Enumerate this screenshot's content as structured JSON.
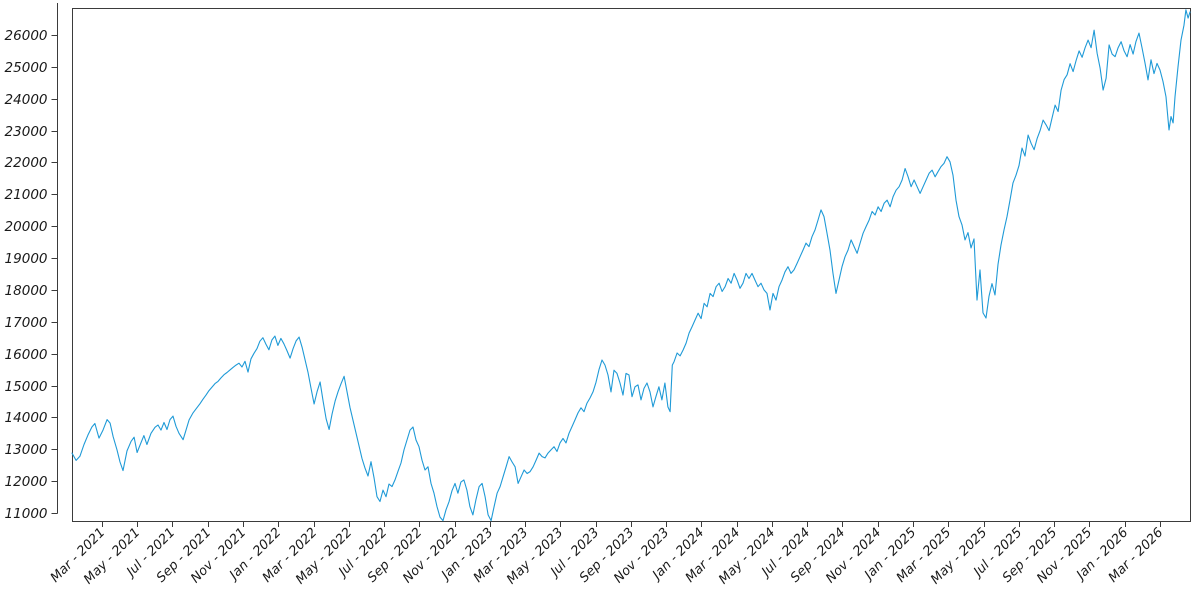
{
  "figure": {
    "background": "#ffffff",
    "axis_color": "#3b3b3b",
    "tick_label_color": "#1a1a1a"
  },
  "chart_data": {
    "type": "line",
    "title": "",
    "xlabel": "",
    "ylabel": "",
    "grid": false,
    "legend": false,
    "line_color": "#1f9ad7",
    "x_axis": {
      "start_date": "2021-01-10",
      "unit": "months-since-start",
      "range_months": [
        0,
        63.41
      ],
      "tick_first_month_offset": 1.7,
      "tick_interval_months": 2,
      "tick_labels": [
        "Mar - 2021",
        "May - 2021",
        "Jul - 2021",
        "Sep - 2021",
        "Nov - 2021",
        "Jan - 2022",
        "Mar - 2022",
        "May - 2022",
        "Jul - 2022",
        "Sep - 2022",
        "Nov - 2022",
        "Jan - 2023",
        "Mar - 2023",
        "May - 2023",
        "Jul - 2023",
        "Sep - 2023",
        "Nov - 2023",
        "Jan - 2024",
        "Mar - 2024",
        "May - 2024",
        "Jul - 2024",
        "Sep - 2024",
        "Nov - 2024",
        "Jan - 2025",
        "Mar - 2025",
        "May - 2025",
        "Jul - 2025",
        "Sep - 2025",
        "Nov - 2025",
        "Jan - 2026",
        "Mar - 2026"
      ]
    },
    "y_axis": {
      "range": [
        10749,
        26847
      ],
      "ticks": [
        11000,
        12000,
        13000,
        14000,
        15000,
        16000,
        17000,
        18000,
        19000,
        20000,
        21000,
        22000,
        23000,
        24000,
        25000,
        26000
      ]
    },
    "points": [
      [
        0,
        12880
      ],
      [
        0.23,
        12650
      ],
      [
        0.45,
        12780
      ],
      [
        0.68,
        13150
      ],
      [
        0.91,
        13450
      ],
      [
        1.13,
        13700
      ],
      [
        1.3,
        13810
      ],
      [
        1.53,
        13350
      ],
      [
        1.76,
        13600
      ],
      [
        1.99,
        13930
      ],
      [
        2.16,
        13820
      ],
      [
        2.33,
        13400
      ],
      [
        2.55,
        12980
      ],
      [
        2.72,
        12600
      ],
      [
        2.89,
        12330
      ],
      [
        3.12,
        12950
      ],
      [
        3.35,
        13250
      ],
      [
        3.52,
        13380
      ],
      [
        3.69,
        12900
      ],
      [
        3.91,
        13200
      ],
      [
        4.08,
        13430
      ],
      [
        4.25,
        13150
      ],
      [
        4.48,
        13500
      ],
      [
        4.71,
        13690
      ],
      [
        4.88,
        13760
      ],
      [
        5.05,
        13600
      ],
      [
        5.22,
        13840
      ],
      [
        5.39,
        13620
      ],
      [
        5.56,
        13930
      ],
      [
        5.73,
        14040
      ],
      [
        5.9,
        13720
      ],
      [
        6.07,
        13500
      ],
      [
        6.3,
        13300
      ],
      [
        6.47,
        13610
      ],
      [
        6.64,
        13920
      ],
      [
        6.86,
        14140
      ],
      [
        7.03,
        14260
      ],
      [
        7.26,
        14430
      ],
      [
        7.43,
        14570
      ],
      [
        7.6,
        14700
      ],
      [
        7.77,
        14840
      ],
      [
        7.94,
        14950
      ],
      [
        8.11,
        15060
      ],
      [
        8.28,
        15130
      ],
      [
        8.45,
        15240
      ],
      [
        8.62,
        15340
      ],
      [
        8.79,
        15410
      ],
      [
        8.96,
        15490
      ],
      [
        9.13,
        15570
      ],
      [
        9.3,
        15640
      ],
      [
        9.47,
        15700
      ],
      [
        9.64,
        15580
      ],
      [
        9.81,
        15760
      ],
      [
        9.98,
        15420
      ],
      [
        10.15,
        15840
      ],
      [
        10.32,
        16010
      ],
      [
        10.49,
        16160
      ],
      [
        10.66,
        16390
      ],
      [
        10.83,
        16500
      ],
      [
        11,
        16300
      ],
      [
        11.17,
        16120
      ],
      [
        11.34,
        16430
      ],
      [
        11.51,
        16550
      ],
      [
        11.68,
        16260
      ],
      [
        11.85,
        16480
      ],
      [
        12.02,
        16310
      ],
      [
        12.19,
        16100
      ],
      [
        12.37,
        15860
      ],
      [
        12.54,
        16160
      ],
      [
        12.71,
        16400
      ],
      [
        12.88,
        16520
      ],
      [
        13.05,
        16200
      ],
      [
        13.22,
        15800
      ],
      [
        13.39,
        15400
      ],
      [
        13.56,
        14900
      ],
      [
        13.73,
        14420
      ],
      [
        13.9,
        14810
      ],
      [
        14.07,
        15110
      ],
      [
        14.24,
        14510
      ],
      [
        14.41,
        13960
      ],
      [
        14.58,
        13620
      ],
      [
        14.75,
        14110
      ],
      [
        14.92,
        14510
      ],
      [
        15.09,
        14810
      ],
      [
        15.26,
        15060
      ],
      [
        15.43,
        15290
      ],
      [
        15.6,
        14810
      ],
      [
        15.77,
        14310
      ],
      [
        15.94,
        13910
      ],
      [
        16.11,
        13510
      ],
      [
        16.28,
        13110
      ],
      [
        16.45,
        12710
      ],
      [
        16.62,
        12410
      ],
      [
        16.79,
        12160
      ],
      [
        16.96,
        12610
      ],
      [
        17.13,
        12110
      ],
      [
        17.3,
        11510
      ],
      [
        17.47,
        11360
      ],
      [
        17.64,
        11720
      ],
      [
        17.81,
        11510
      ],
      [
        17.98,
        11910
      ],
      [
        18.15,
        11830
      ],
      [
        18.32,
        12040
      ],
      [
        18.49,
        12310
      ],
      [
        18.66,
        12570
      ],
      [
        18.83,
        12980
      ],
      [
        19,
        13290
      ],
      [
        19.17,
        13600
      ],
      [
        19.34,
        13700
      ],
      [
        19.51,
        13290
      ],
      [
        19.68,
        13080
      ],
      [
        19.85,
        12660
      ],
      [
        20.02,
        12350
      ],
      [
        20.19,
        12450
      ],
      [
        20.36,
        11930
      ],
      [
        20.53,
        11620
      ],
      [
        20.7,
        11200
      ],
      [
        20.87,
        10870
      ],
      [
        21.04,
        10760
      ],
      [
        21.21,
        11100
      ],
      [
        21.38,
        11350
      ],
      [
        21.55,
        11700
      ],
      [
        21.72,
        11930
      ],
      [
        21.89,
        11620
      ],
      [
        22.06,
        11970
      ],
      [
        22.23,
        12040
      ],
      [
        22.4,
        11720
      ],
      [
        22.57,
        11200
      ],
      [
        22.74,
        10940
      ],
      [
        22.91,
        11410
      ],
      [
        23.09,
        11830
      ],
      [
        23.26,
        11930
      ],
      [
        23.43,
        11510
      ],
      [
        23.6,
        10940
      ],
      [
        23.77,
        10760
      ],
      [
        23.94,
        11200
      ],
      [
        24.11,
        11620
      ],
      [
        24.28,
        11830
      ],
      [
        24.45,
        12140
      ],
      [
        24.62,
        12450
      ],
      [
        24.79,
        12770
      ],
      [
        24.96,
        12600
      ],
      [
        25.13,
        12450
      ],
      [
        25.3,
        11930
      ],
      [
        25.47,
        12140
      ],
      [
        25.64,
        12350
      ],
      [
        25.81,
        12240
      ],
      [
        25.98,
        12300
      ],
      [
        26.15,
        12450
      ],
      [
        26.32,
        12660
      ],
      [
        26.49,
        12880
      ],
      [
        26.66,
        12770
      ],
      [
        26.83,
        12730
      ],
      [
        27,
        12880
      ],
      [
        27.17,
        12980
      ],
      [
        27.34,
        13080
      ],
      [
        27.51,
        12930
      ],
      [
        27.68,
        13200
      ],
      [
        27.85,
        13340
      ],
      [
        28.02,
        13200
      ],
      [
        28.19,
        13500
      ],
      [
        28.36,
        13710
      ],
      [
        28.53,
        13920
      ],
      [
        28.7,
        14140
      ],
      [
        28.87,
        14300
      ],
      [
        29.04,
        14180
      ],
      [
        29.21,
        14450
      ],
      [
        29.38,
        14610
      ],
      [
        29.55,
        14800
      ],
      [
        29.72,
        15100
      ],
      [
        29.89,
        15500
      ],
      [
        30.06,
        15800
      ],
      [
        30.23,
        15640
      ],
      [
        30.4,
        15330
      ],
      [
        30.57,
        14800
      ],
      [
        30.74,
        15480
      ],
      [
        30.91,
        15380
      ],
      [
        31.08,
        15080
      ],
      [
        31.25,
        14700
      ],
      [
        31.42,
        15380
      ],
      [
        31.59,
        15330
      ],
      [
        31.76,
        14650
      ],
      [
        31.93,
        14960
      ],
      [
        32.1,
        15020
      ],
      [
        32.27,
        14550
      ],
      [
        32.44,
        14910
      ],
      [
        32.61,
        15080
      ],
      [
        32.78,
        14800
      ],
      [
        32.95,
        14330
      ],
      [
        33.12,
        14650
      ],
      [
        33.29,
        14960
      ],
      [
        33.46,
        14550
      ],
      [
        33.63,
        15080
      ],
      [
        33.8,
        14330
      ],
      [
        33.92,
        14180
      ],
      [
        34.05,
        15640
      ],
      [
        34.15,
        15750
      ],
      [
        34.32,
        16020
      ],
      [
        34.49,
        15930
      ],
      [
        34.66,
        16115
      ],
      [
        34.83,
        16330
      ],
      [
        35,
        16650
      ],
      [
        35.17,
        16850
      ],
      [
        35.34,
        17060
      ],
      [
        35.51,
        17270
      ],
      [
        35.68,
        17100
      ],
      [
        35.85,
        17580
      ],
      [
        36.02,
        17470
      ],
      [
        36.19,
        17890
      ],
      [
        36.36,
        17790
      ],
      [
        36.53,
        18100
      ],
      [
        36.7,
        18210
      ],
      [
        36.87,
        17950
      ],
      [
        37.04,
        18100
      ],
      [
        37.21,
        18360
      ],
      [
        37.38,
        18210
      ],
      [
        37.55,
        18520
      ],
      [
        37.72,
        18310
      ],
      [
        37.89,
        18050
      ],
      [
        38.06,
        18210
      ],
      [
        38.23,
        18520
      ],
      [
        38.4,
        18360
      ],
      [
        38.57,
        18520
      ],
      [
        38.74,
        18310
      ],
      [
        38.91,
        18100
      ],
      [
        39.08,
        18210
      ],
      [
        39.25,
        18000
      ],
      [
        39.42,
        17890
      ],
      [
        39.59,
        17370
      ],
      [
        39.76,
        17890
      ],
      [
        39.93,
        17680
      ],
      [
        40.1,
        18100
      ],
      [
        40.27,
        18310
      ],
      [
        40.44,
        18570
      ],
      [
        40.61,
        18730
      ],
      [
        40.78,
        18520
      ],
      [
        40.95,
        18630
      ],
      [
        41.12,
        18830
      ],
      [
        41.29,
        19040
      ],
      [
        41.46,
        19250
      ],
      [
        41.63,
        19470
      ],
      [
        41.8,
        19360
      ],
      [
        41.97,
        19670
      ],
      [
        42.14,
        19880
      ],
      [
        42.31,
        20190
      ],
      [
        42.48,
        20510
      ],
      [
        42.65,
        20300
      ],
      [
        42.82,
        19780
      ],
      [
        42.99,
        19250
      ],
      [
        43.16,
        18520
      ],
      [
        43.33,
        17890
      ],
      [
        43.5,
        18310
      ],
      [
        43.67,
        18730
      ],
      [
        43.84,
        19040
      ],
      [
        44.01,
        19250
      ],
      [
        44.19,
        19570
      ],
      [
        44.36,
        19360
      ],
      [
        44.53,
        19150
      ],
      [
        44.7,
        19470
      ],
      [
        44.87,
        19780
      ],
      [
        45.04,
        19990
      ],
      [
        45.21,
        20190
      ],
      [
        45.38,
        20460
      ],
      [
        45.55,
        20350
      ],
      [
        45.72,
        20610
      ],
      [
        45.89,
        20460
      ],
      [
        46.06,
        20720
      ],
      [
        46.23,
        20820
      ],
      [
        46.4,
        20610
      ],
      [
        46.57,
        20930
      ],
      [
        46.74,
        21130
      ],
      [
        46.91,
        21240
      ],
      [
        47.08,
        21450
      ],
      [
        47.25,
        21810
      ],
      [
        47.42,
        21550
      ],
      [
        47.59,
        21240
      ],
      [
        47.76,
        21450
      ],
      [
        47.93,
        21240
      ],
      [
        48.1,
        21030
      ],
      [
        48.27,
        21240
      ],
      [
        48.44,
        21450
      ],
      [
        48.61,
        21660
      ],
      [
        48.78,
        21760
      ],
      [
        48.95,
        21550
      ],
      [
        49.12,
        21710
      ],
      [
        49.29,
        21870
      ],
      [
        49.46,
        21970
      ],
      [
        49.63,
        22180
      ],
      [
        49.8,
        22020
      ],
      [
        49.97,
        21600
      ],
      [
        50.14,
        20820
      ],
      [
        50.31,
        20300
      ],
      [
        50.48,
        20040
      ],
      [
        50.65,
        19570
      ],
      [
        50.82,
        19800
      ],
      [
        50.99,
        19320
      ],
      [
        51.16,
        19600
      ],
      [
        51.33,
        17680
      ],
      [
        51.5,
        18630
      ],
      [
        51.67,
        17280
      ],
      [
        51.84,
        17120
      ],
      [
        52.01,
        17800
      ],
      [
        52.18,
        18200
      ],
      [
        52.35,
        17840
      ],
      [
        52.52,
        18800
      ],
      [
        52.69,
        19410
      ],
      [
        52.86,
        19880
      ],
      [
        53.03,
        20300
      ],
      [
        53.2,
        20820
      ],
      [
        53.37,
        21360
      ],
      [
        53.54,
        21600
      ],
      [
        53.71,
        21900
      ],
      [
        53.88,
        22450
      ],
      [
        54.05,
        22200
      ],
      [
        54.23,
        22860
      ],
      [
        54.4,
        22600
      ],
      [
        54.57,
        22400
      ],
      [
        54.74,
        22750
      ],
      [
        54.91,
        23000
      ],
      [
        55.08,
        23330
      ],
      [
        55.25,
        23180
      ],
      [
        55.42,
        23000
      ],
      [
        55.59,
        23400
      ],
      [
        55.76,
        23800
      ],
      [
        55.93,
        23600
      ],
      [
        56.1,
        24270
      ],
      [
        56.27,
        24600
      ],
      [
        56.44,
        24750
      ],
      [
        56.61,
        25100
      ],
      [
        56.78,
        24850
      ],
      [
        56.95,
        25200
      ],
      [
        57.12,
        25500
      ],
      [
        57.29,
        25300
      ],
      [
        57.46,
        25600
      ],
      [
        57.63,
        25840
      ],
      [
        57.8,
        25600
      ],
      [
        57.97,
        26150
      ],
      [
        58.14,
        25430
      ],
      [
        58.31,
        24960
      ],
      [
        58.48,
        24270
      ],
      [
        58.65,
        24640
      ],
      [
        58.82,
        25690
      ],
      [
        58.99,
        25400
      ],
      [
        59.16,
        25320
      ],
      [
        59.33,
        25600
      ],
      [
        59.5,
        25790
      ],
      [
        59.67,
        25500
      ],
      [
        59.84,
        25320
      ],
      [
        60.01,
        25700
      ],
      [
        60.18,
        25400
      ],
      [
        60.35,
        25800
      ],
      [
        60.52,
        26060
      ],
      [
        60.69,
        25600
      ],
      [
        60.86,
        25120
      ],
      [
        61.03,
        24590
      ],
      [
        61.2,
        25220
      ],
      [
        61.37,
        24790
      ],
      [
        61.54,
        25110
      ],
      [
        61.71,
        24900
      ],
      [
        61.88,
        24540
      ],
      [
        62.05,
        24060
      ],
      [
        62.22,
        23020
      ],
      [
        62.33,
        23440
      ],
      [
        62.45,
        23240
      ],
      [
        62.56,
        24060
      ],
      [
        62.73,
        25000
      ],
      [
        62.9,
        25840
      ],
      [
        63.07,
        26310
      ],
      [
        63.18,
        26790
      ],
      [
        63.3,
        26530
      ],
      [
        63.41,
        26720
      ]
    ]
  }
}
